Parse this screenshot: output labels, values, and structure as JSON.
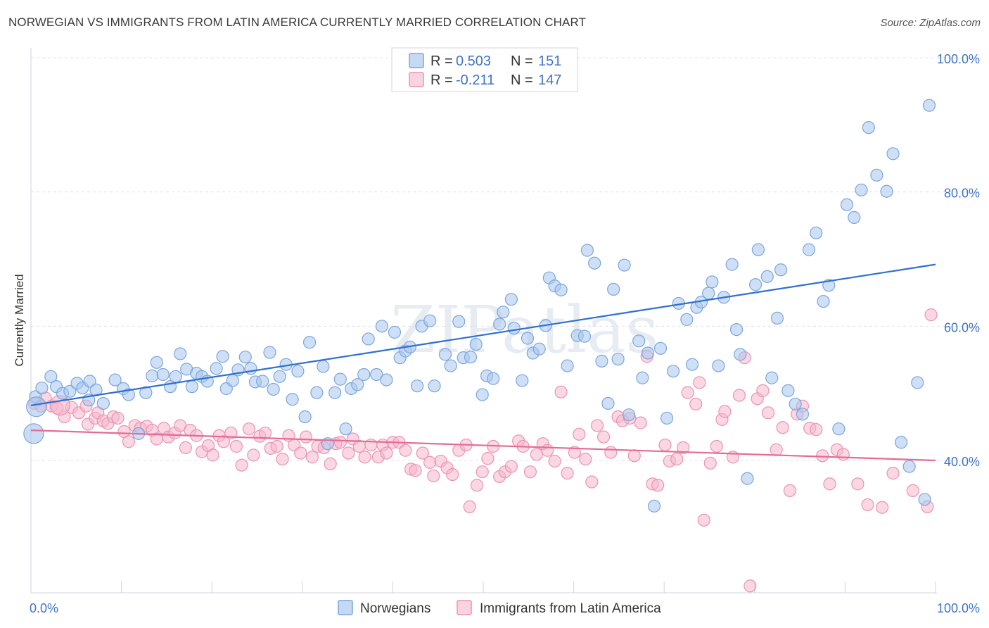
{
  "title": "NORWEGIAN VS IMMIGRANTS FROM LATIN AMERICA CURRENTLY MARRIED CORRELATION CHART",
  "source": "Source: ZipAtlas.com",
  "watermark": "ZIPatlas",
  "legend": {
    "r_label": "R =",
    "n_label": "N =",
    "rows": [
      {
        "r": "0.503",
        "n": "151",
        "color": "#a8c6ee"
      },
      {
        "r": "-0.211",
        "n": "147",
        "color": "#f5b6cb"
      }
    ]
  },
  "colors": {
    "blue_fill": "#a8c6ee",
    "blue_stroke": "#7aa6dd",
    "blue_line": "#2f6fd0",
    "pink_fill": "#f5b6cb",
    "pink_stroke": "#ea94b0",
    "pink_line": "#e56b95",
    "axis_label": "#3f73c8",
    "grid": "#dde1e6"
  },
  "chart_data": {
    "type": "scatter",
    "title": "NORWEGIAN VS IMMIGRANTS FROM LATIN AMERICA CURRENTLY MARRIED CORRELATION CHART",
    "xlabel": "",
    "ylabel": "Currently Married",
    "xlim": [
      0,
      100
    ],
    "ylim": [
      20,
      100
    ],
    "x_tick_labels": [
      "0.0%",
      "100.0%"
    ],
    "y_ticks": [
      40,
      60,
      80,
      100
    ],
    "y_tick_labels": [
      "40.0%",
      "60.0%",
      "80.0%",
      "100.0%"
    ],
    "grid": true,
    "legend_position": "top-center",
    "series": [
      {
        "name": "Norwegians",
        "r": 0.503,
        "n": 151,
        "trend": [
          [
            0,
            48.2
          ],
          [
            100,
            69.2
          ]
        ],
        "points": [
          [
            0.5,
            49.5
          ],
          [
            1.2,
            50.8
          ],
          [
            2.2,
            52.5
          ],
          [
            2.8,
            51
          ],
          [
            3.5,
            50
          ],
          [
            4.3,
            50.3
          ],
          [
            5.1,
            51.5
          ],
          [
            5.7,
            50.8
          ],
          [
            6.5,
            51.8
          ],
          [
            7.2,
            50.5
          ],
          [
            6.4,
            49
          ],
          [
            8.0,
            48.5
          ],
          [
            9.3,
            52
          ],
          [
            10.2,
            50.7
          ],
          [
            10.8,
            49.8
          ],
          [
            11.9,
            44
          ],
          [
            12.7,
            50.1
          ],
          [
            13.4,
            52.6
          ],
          [
            13.9,
            54.6
          ],
          [
            14.6,
            52.8
          ],
          [
            15.4,
            51
          ],
          [
            16.0,
            52.5
          ],
          [
            16.5,
            55.9
          ],
          [
            17.2,
            53.6
          ],
          [
            17.8,
            51
          ],
          [
            18.3,
            53
          ],
          [
            18.9,
            52.5
          ],
          [
            19.5,
            51.8
          ],
          [
            20.5,
            53.7
          ],
          [
            21.2,
            55.5
          ],
          [
            21.6,
            50.7
          ],
          [
            22.3,
            51.9
          ],
          [
            22.9,
            53.5
          ],
          [
            23.7,
            55.4
          ],
          [
            24.3,
            53.7
          ],
          [
            24.8,
            51.7
          ],
          [
            25.6,
            51.8
          ],
          [
            26.4,
            56.1
          ],
          [
            26.8,
            50.6
          ],
          [
            27.5,
            52.5
          ],
          [
            28.2,
            54.3
          ],
          [
            28.9,
            49.1
          ],
          [
            29.5,
            53.3
          ],
          [
            30.3,
            46.5
          ],
          [
            30.8,
            57.6
          ],
          [
            31.6,
            50.1
          ],
          [
            32.3,
            54
          ],
          [
            32.8,
            42.5
          ],
          [
            33.6,
            50.1
          ],
          [
            34.2,
            52.1
          ],
          [
            34.8,
            44.7
          ],
          [
            35.4,
            50.7
          ],
          [
            36.1,
            51.3
          ],
          [
            36.8,
            52.8
          ],
          [
            37.3,
            58.1
          ],
          [
            38.2,
            52.8
          ],
          [
            38.8,
            60
          ],
          [
            39.3,
            52
          ],
          [
            40.2,
            59.1
          ],
          [
            40.8,
            55.3
          ],
          [
            41.4,
            56.3
          ],
          [
            41.9,
            56.9
          ],
          [
            42.7,
            51.1
          ],
          [
            43.2,
            60
          ],
          [
            44.1,
            60.8
          ],
          [
            44.6,
            51.1
          ],
          [
            45.8,
            55.8
          ],
          [
            46.4,
            54.1
          ],
          [
            47.3,
            60.7
          ],
          [
            47.8,
            55.3
          ],
          [
            48.6,
            55.4
          ],
          [
            49.2,
            57.3
          ],
          [
            49.9,
            49.8
          ],
          [
            50.4,
            52.6
          ],
          [
            51.1,
            52.2
          ],
          [
            51.8,
            60.3
          ],
          [
            52.2,
            62.1
          ],
          [
            53.1,
            64
          ],
          [
            53.4,
            59.7
          ],
          [
            54.3,
            51.9
          ],
          [
            54.9,
            58.2
          ],
          [
            55.5,
            56
          ],
          [
            56.2,
            56.6
          ],
          [
            56.9,
            60.1
          ],
          [
            57.3,
            67.2
          ],
          [
            57.9,
            66
          ],
          [
            58.6,
            65.4
          ],
          [
            59.3,
            54.1
          ],
          [
            60.4,
            58.6
          ],
          [
            61.2,
            58.5
          ],
          [
            61.5,
            71.3
          ],
          [
            62.3,
            69.4
          ],
          [
            63.1,
            54.8
          ],
          [
            63.8,
            48.5
          ],
          [
            64.4,
            65.5
          ],
          [
            64.9,
            55.1
          ],
          [
            65.6,
            69.1
          ],
          [
            66.1,
            46.8
          ],
          [
            67.2,
            57.8
          ],
          [
            67.6,
            52.3
          ],
          [
            68.2,
            56
          ],
          [
            68.9,
            33.2
          ],
          [
            69.6,
            56.7
          ],
          [
            70.3,
            46.3
          ],
          [
            71.0,
            53.3
          ],
          [
            71.6,
            63.4
          ],
          [
            72.5,
            61
          ],
          [
            73.1,
            54.3
          ],
          [
            73.6,
            62.8
          ],
          [
            74.1,
            63.6
          ],
          [
            74.9,
            64.9
          ],
          [
            75.3,
            66.6
          ],
          [
            76.0,
            54.1
          ],
          [
            76.6,
            64.3
          ],
          [
            77.5,
            69.2
          ],
          [
            78.0,
            59.5
          ],
          [
            78.4,
            55.8
          ],
          [
            79.2,
            37.3
          ],
          [
            80.1,
            66.2
          ],
          [
            80.4,
            71.4
          ],
          [
            81.4,
            67.4
          ],
          [
            81.9,
            52.3
          ],
          [
            82.5,
            61.2
          ],
          [
            82.9,
            68.4
          ],
          [
            83.7,
            50.4
          ],
          [
            84.5,
            48.4
          ],
          [
            85.3,
            46.9
          ],
          [
            86.0,
            71.4
          ],
          [
            86.8,
            73.9
          ],
          [
            87.6,
            63.7
          ],
          [
            88.2,
            66.1
          ],
          [
            89.3,
            44.7
          ],
          [
            90.2,
            78.1
          ],
          [
            91.0,
            76.2
          ],
          [
            91.8,
            80.3
          ],
          [
            92.6,
            89.6
          ],
          [
            93.5,
            82.5
          ],
          [
            94.6,
            80.1
          ],
          [
            95.3,
            85.7
          ],
          [
            96.2,
            42.7
          ],
          [
            97.1,
            39.1
          ],
          [
            98.0,
            51.6
          ],
          [
            98.8,
            34.2
          ],
          [
            99.3,
            92.9
          ]
        ],
        "big_points": [
          [
            0.6,
            48.0
          ],
          [
            0.3,
            44.0
          ]
        ]
      },
      {
        "name": "Immigrants from Latin America",
        "r": -0.211,
        "n": 147,
        "trend": [
          [
            0,
            44.5
          ],
          [
            100,
            40.0
          ]
        ],
        "points": [
          [
            0.4,
            48.5
          ],
          [
            1.1,
            48.1
          ],
          [
            1.6,
            49.3
          ],
          [
            2.3,
            48.1
          ],
          [
            2.9,
            47.8
          ],
          [
            3.7,
            46.5
          ],
          [
            4.5,
            47.9
          ],
          [
            5.3,
            47.1
          ],
          [
            6.1,
            48.1
          ],
          [
            6.3,
            45.4
          ],
          [
            7.1,
            46.3
          ],
          [
            7.4,
            47.1
          ],
          [
            8.0,
            45.9
          ],
          [
            8.5,
            45.5
          ],
          [
            9.1,
            46.5
          ],
          [
            9.6,
            46.3
          ],
          [
            10.3,
            44.3
          ],
          [
            10.8,
            42.8
          ],
          [
            11.5,
            45.2
          ],
          [
            12.1,
            44.8
          ],
          [
            12.8,
            45.1
          ],
          [
            13.4,
            44.5
          ],
          [
            13.9,
            43.2
          ],
          [
            14.7,
            44.8
          ],
          [
            15.2,
            43.5
          ],
          [
            15.9,
            44.1
          ],
          [
            16.5,
            45.2
          ],
          [
            17.1,
            41.9
          ],
          [
            17.6,
            44.5
          ],
          [
            18.3,
            43.7
          ],
          [
            18.9,
            41.3
          ],
          [
            19.6,
            42.2
          ],
          [
            20.1,
            40.8
          ],
          [
            20.8,
            43.7
          ],
          [
            21.3,
            42.8
          ],
          [
            22.1,
            44.1
          ],
          [
            22.7,
            42.1
          ],
          [
            23.3,
            39.3
          ],
          [
            24.1,
            44.7
          ],
          [
            24.6,
            40.8
          ],
          [
            25.3,
            43.6
          ],
          [
            25.9,
            44.1
          ],
          [
            26.5,
            41.8
          ],
          [
            27.2,
            42.1
          ],
          [
            27.8,
            40.2
          ],
          [
            28.5,
            43.7
          ],
          [
            29.1,
            42.3
          ],
          [
            29.8,
            41.1
          ],
          [
            30.4,
            43.5
          ],
          [
            31.1,
            40.5
          ],
          [
            31.7,
            42.1
          ],
          [
            32.4,
            41.9
          ],
          [
            33.1,
            39.5
          ],
          [
            33.7,
            42.5
          ],
          [
            34.2,
            42.7
          ],
          [
            35.1,
            41.1
          ],
          [
            35.6,
            43.2
          ],
          [
            36.3,
            42.1
          ],
          [
            36.9,
            40.5
          ],
          [
            37.6,
            42.3
          ],
          [
            38.4,
            40.5
          ],
          [
            38.9,
            42.3
          ],
          [
            39.3,
            41.1
          ],
          [
            40.0,
            42.7
          ],
          [
            40.7,
            42.7
          ],
          [
            41.4,
            41.5
          ],
          [
            42.0,
            38.7
          ],
          [
            42.5,
            38.5
          ],
          [
            43.3,
            41.1
          ],
          [
            44.1,
            39.7
          ],
          [
            44.5,
            37.7
          ],
          [
            45.3,
            39.9
          ],
          [
            46.0,
            38.9
          ],
          [
            46.6,
            37.9
          ],
          [
            47.3,
            41.5
          ],
          [
            48.1,
            42.3
          ],
          [
            48.5,
            33.1
          ],
          [
            49.3,
            36.3
          ],
          [
            49.9,
            38.3
          ],
          [
            50.5,
            40.3
          ],
          [
            51.1,
            42.1
          ],
          [
            51.8,
            37.6
          ],
          [
            52.4,
            38.3
          ],
          [
            53.1,
            39.1
          ],
          [
            53.9,
            42.9
          ],
          [
            54.4,
            42.1
          ],
          [
            55.2,
            38.3
          ],
          [
            55.9,
            40.9
          ],
          [
            56.6,
            42.5
          ],
          [
            57.1,
            41.5
          ],
          [
            57.9,
            39.9
          ],
          [
            58.6,
            50.2
          ],
          [
            59.3,
            38.1
          ],
          [
            60.1,
            41.2
          ],
          [
            60.6,
            43.9
          ],
          [
            61.3,
            40.2
          ],
          [
            62.0,
            36.8
          ],
          [
            62.6,
            45.2
          ],
          [
            63.3,
            43.5
          ],
          [
            64.1,
            41.2
          ],
          [
            64.9,
            46.5
          ],
          [
            65.4,
            45.9
          ],
          [
            66.2,
            46.3
          ],
          [
            66.7,
            40.7
          ],
          [
            67.4,
            45.6
          ],
          [
            68.1,
            55.5
          ],
          [
            68.7,
            36.5
          ],
          [
            69.3,
            36.3
          ],
          [
            70.1,
            42.3
          ],
          [
            70.6,
            39.9
          ],
          [
            71.4,
            40.2
          ],
          [
            72.1,
            41.9
          ],
          [
            72.6,
            50.1
          ],
          [
            73.5,
            48.4
          ],
          [
            73.9,
            51.6
          ],
          [
            74.4,
            31.1
          ],
          [
            75.1,
            39.6
          ],
          [
            75.8,
            42.1
          ],
          [
            76.4,
            46.1
          ],
          [
            76.7,
            47.3
          ],
          [
            77.6,
            40.5
          ],
          [
            78.3,
            49.7
          ],
          [
            78.9,
            55.3
          ],
          [
            79.5,
            21.3
          ],
          [
            80.3,
            49.2
          ],
          [
            80.9,
            50.4
          ],
          [
            81.5,
            47.1
          ],
          [
            82.4,
            41.6
          ],
          [
            83.1,
            44.9
          ],
          [
            83.9,
            35.5
          ],
          [
            84.7,
            46.9
          ],
          [
            85.3,
            48.1
          ],
          [
            86.1,
            44.8
          ],
          [
            86.8,
            44.6
          ],
          [
            87.5,
            40.7
          ],
          [
            88.3,
            36.5
          ],
          [
            89.1,
            41.6
          ],
          [
            89.8,
            40.9
          ],
          [
            91.4,
            36.5
          ],
          [
            92.5,
            33.4
          ],
          [
            94.1,
            33.0
          ],
          [
            95.3,
            38.1
          ],
          [
            97.5,
            35.5
          ],
          [
            99.1,
            33.1
          ],
          [
            99.5,
            61.7
          ]
        ],
        "big_points": [
          [
            3.2,
            48.2
          ]
        ]
      }
    ]
  },
  "bottom_legend": [
    {
      "label": "Norwegians",
      "color": "#a8c6ee"
    },
    {
      "label": "Immigrants from Latin America",
      "color": "#f5b6cb"
    }
  ]
}
